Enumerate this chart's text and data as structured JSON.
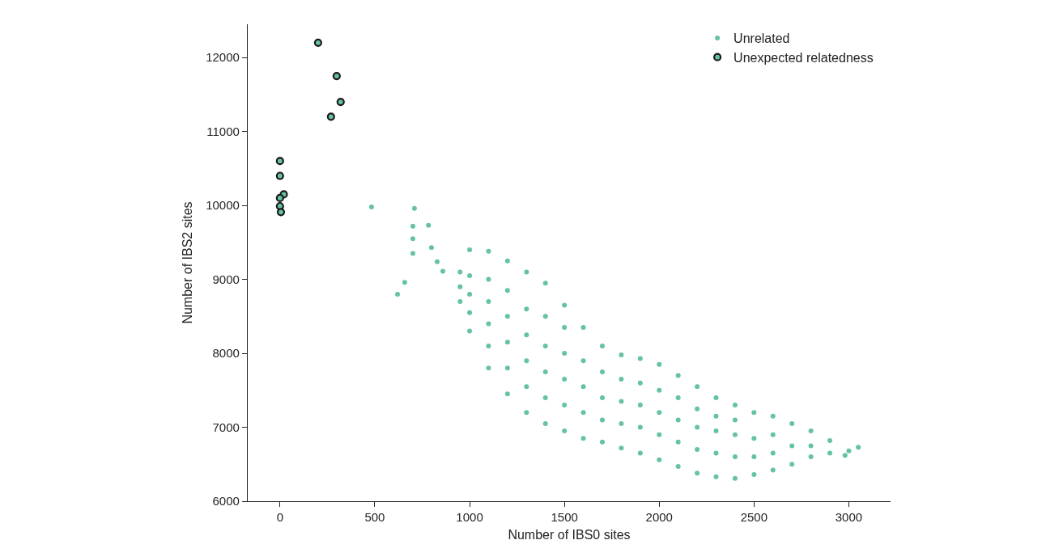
{
  "chart_data": {
    "type": "scatter",
    "xlabel": "Number of IBS0 sites",
    "ylabel": "Number of IBS2 sites",
    "xlim": [
      -170,
      3220
    ],
    "ylim": [
      6000,
      12450
    ],
    "xticks": [
      0,
      500,
      1000,
      1500,
      2000,
      2500,
      3000
    ],
    "yticks": [
      6000,
      7000,
      8000,
      9000,
      10000,
      11000,
      12000
    ],
    "legend": "top right",
    "marker": "circle",
    "series": [
      {
        "name": "Unrelated",
        "color": "#66c2a5",
        "x": [
          950,
          950,
          950,
          1000,
          1000,
          1000,
          1000,
          1000,
          1100,
          1100,
          1100,
          1100,
          1100,
          1100,
          1200,
          1200,
          1200,
          1200,
          1200,
          1200,
          1300,
          1300,
          1300,
          1300,
          1300,
          1300,
          1400,
          1400,
          1400,
          1400,
          1400,
          1400,
          1500,
          1500,
          1500,
          1500,
          1500,
          1500,
          1600,
          1600,
          1600,
          1600,
          1600,
          1700,
          1700,
          1700,
          1700,
          1700,
          1800,
          1800,
          1800,
          1800,
          1800,
          1900,
          1900,
          1900,
          1900,
          1900,
          2000,
          2000,
          2000,
          2000,
          2000,
          2100,
          2100,
          2100,
          2100,
          2100,
          2200,
          2200,
          2200,
          2200,
          2200,
          2300,
          2300,
          2300,
          2300,
          2300,
          2400,
          2400,
          2400,
          2400,
          2400,
          2500,
          2500,
          2500,
          2500,
          2600,
          2600,
          2600,
          2600,
          2700,
          2700,
          2700,
          2800,
          2800,
          2800,
          2900,
          2900,
          3050,
          2980,
          3000,
          483,
          709,
          701,
          783,
          701,
          701,
          658,
          620,
          799,
          829,
          859
        ],
        "values": [
          8700,
          8900,
          9100,
          8300,
          8550,
          8800,
          9050,
          9400,
          7800,
          8100,
          8400,
          8700,
          9000,
          9380,
          7450,
          7800,
          8150,
          8500,
          8850,
          9250,
          7200,
          7550,
          7900,
          8250,
          8600,
          9100,
          7050,
          7400,
          7750,
          8100,
          8500,
          8950,
          6950,
          7300,
          7650,
          8000,
          8350,
          8650,
          6850,
          7200,
          7550,
          7900,
          8350,
          6800,
          7100,
          7400,
          7750,
          8100,
          6720,
          7050,
          7350,
          7650,
          7980,
          6650,
          7000,
          7300,
          7600,
          7930,
          6560,
          6900,
          7200,
          7500,
          7850,
          6470,
          6800,
          7100,
          7400,
          7700,
          6380,
          6700,
          7000,
          7250,
          7550,
          6330,
          6650,
          6950,
          7150,
          7400,
          6310,
          6600,
          6900,
          7100,
          7300,
          6360,
          6600,
          6850,
          7200,
          6420,
          6650,
          6900,
          7150,
          6500,
          6750,
          7050,
          6600,
          6750,
          6950,
          6650,
          6820,
          6730,
          6620,
          6680,
          9980,
          9960,
          9720,
          9730,
          9550,
          9350,
          8960,
          8800,
          9430,
          9240,
          9110
        ]
      },
      {
        "name": "Unexpected relatedness",
        "color": "#66c2a5",
        "x": [
          201,
          299,
          320,
          269,
          0,
          0,
          20,
          0,
          0,
          5
        ],
        "values": [
          12200,
          11750,
          11400,
          11200,
          10600,
          10400,
          10150,
          10100,
          9990,
          9910
        ]
      }
    ]
  }
}
